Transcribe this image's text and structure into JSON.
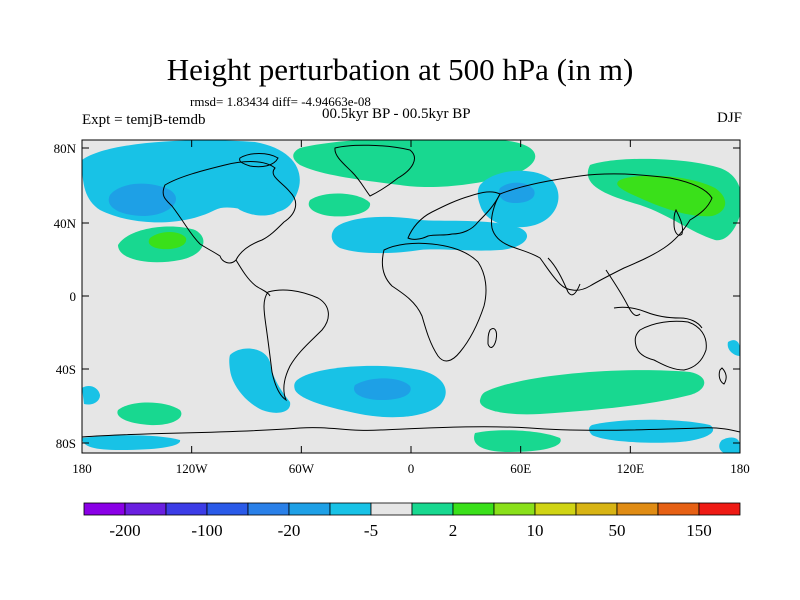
{
  "title": "Height perturbation at 500 hPa (in m)",
  "stats": "rmsd= 1.83434 diff= -4.94663e-08",
  "period": "00.5kyr BP - 00.5kyr BP",
  "experiment": "Expt = temjB-temdb",
  "season": "DJF",
  "map": {
    "lat_ticks": [
      "80N",
      "40N",
      "0",
      "40S",
      "80S"
    ],
    "lon_ticks": [
      "180",
      "120W",
      "60W",
      "0",
      "60E",
      "120E",
      "180"
    ],
    "background_color": "#e6e6e6"
  },
  "colorbar": {
    "colors": [
      "#8a00e6",
      "#6a1fe0",
      "#3c3ce6",
      "#2a5ae8",
      "#2a80e8",
      "#1ea0e6",
      "#18c2e6",
      "#e6e6e6",
      "#18d890",
      "#3ae01a",
      "#8ae01a",
      "#d0d414",
      "#d8b414",
      "#e08c14",
      "#e66014",
      "#ee1a14"
    ],
    "labels": [
      "-200",
      "-100",
      "-20",
      "-5",
      "2",
      "10",
      "50",
      "150"
    ]
  },
  "fill_colors": {
    "cyan": "#18c2e6",
    "blue": "#1ea0e6",
    "green": "#18d890",
    "bright_green": "#3ae01a"
  }
}
